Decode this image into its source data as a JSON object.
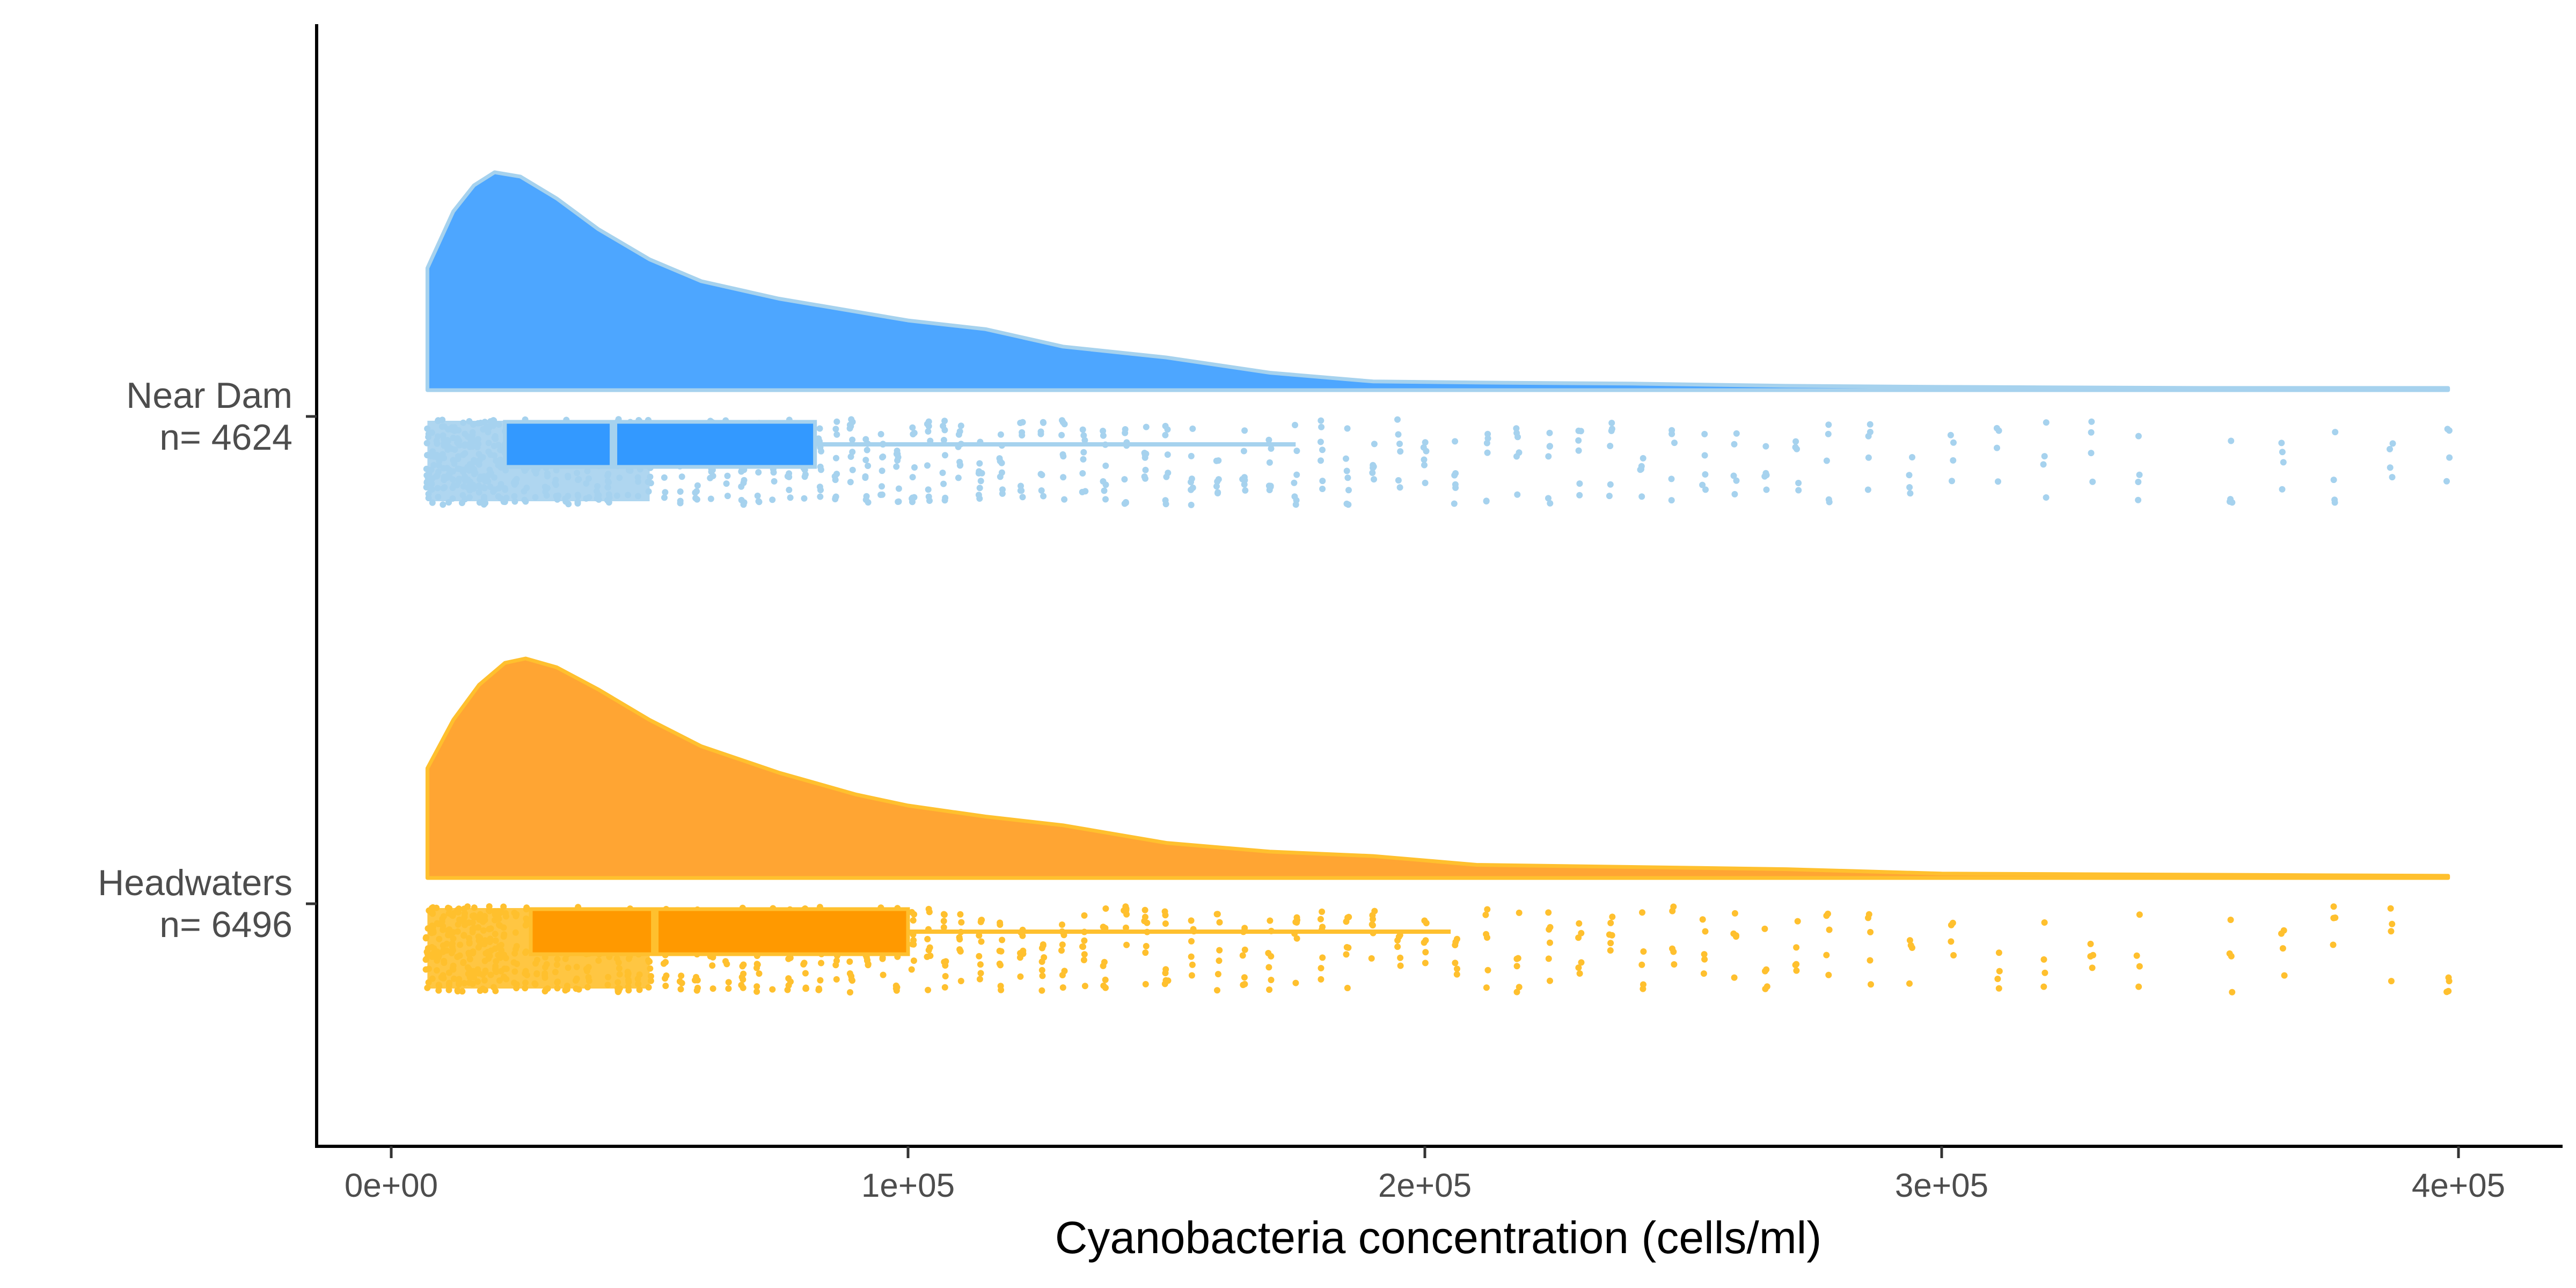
{
  "chart_data": {
    "type": "raincloud",
    "title": "",
    "xlabel": "Cyanobacteria concentration (cells/ml)",
    "ylabel": "",
    "xlim": [
      -15000,
      420000
    ],
    "x_ticks": [
      0,
      100000,
      200000,
      300000,
      400000
    ],
    "x_tick_labels": [
      "0e+00",
      "1e+05",
      "2e+05",
      "3e+05",
      "4e+05"
    ],
    "grid": false,
    "legend": "none",
    "groups": [
      {
        "name": "Near Dam",
        "label_line1": "Near Dam",
        "label_line2": "n= 4624",
        "n": 4624,
        "fill_color": "#4DA6FF",
        "outline_color": "#A6D2EE",
        "point_color": "#A6D2EE",
        "box_color": "#3399FF",
        "range": [
          7000,
          398000
        ],
        "box": {
          "q1": 22000,
          "median": 43000,
          "q3": 82000,
          "whisker_high": 175000
        },
        "density": [
          [
            7000,
            0.56
          ],
          [
            12000,
            0.82
          ],
          [
            16000,
            0.94
          ],
          [
            20000,
            1.0
          ],
          [
            25000,
            0.98
          ],
          [
            32000,
            0.88
          ],
          [
            40000,
            0.74
          ],
          [
            50000,
            0.6
          ],
          [
            60000,
            0.5
          ],
          [
            75000,
            0.42
          ],
          [
            90000,
            0.36
          ],
          [
            100000,
            0.32
          ],
          [
            115000,
            0.28
          ],
          [
            130000,
            0.2
          ],
          [
            150000,
            0.15
          ],
          [
            170000,
            0.08
          ],
          [
            190000,
            0.04
          ],
          [
            210000,
            0.035
          ],
          [
            240000,
            0.03
          ],
          [
            270000,
            0.02
          ],
          [
            300000,
            0.015
          ],
          [
            350000,
            0.01
          ],
          [
            398000,
            0.01
          ]
        ],
        "sample_values": [
          7000,
          8000,
          9000,
          10000,
          11000,
          12000,
          13000,
          14000,
          15000,
          16000,
          17000,
          18000,
          19000,
          20000,
          21000,
          22000,
          24000,
          26000,
          28000,
          30000,
          32000,
          34000,
          36000,
          38000,
          40000,
          42000,
          44000,
          46000,
          48000,
          50000,
          53000,
          56000,
          59000,
          62000,
          65000,
          68000,
          71000,
          74000,
          77000,
          80000,
          83000,
          86000,
          89000,
          92000,
          95000,
          98000,
          101000,
          104000,
          107000,
          110000,
          114000,
          118000,
          122000,
          126000,
          130000,
          134000,
          138000,
          142000,
          146000,
          150000,
          155000,
          160000,
          165000,
          170000,
          175000,
          180000,
          185000,
          190000,
          195000,
          200000,
          206000,
          212000,
          218000,
          224000,
          230000,
          236000,
          242000,
          248000,
          254000,
          260000,
          266000,
          272000,
          278000,
          286000,
          294000,
          302000,
          311000,
          320000,
          329000,
          338000,
          356000,
          366000,
          376000,
          387000,
          398000
        ]
      },
      {
        "name": "Headwaters",
        "label_line1": "Headwaters",
        "label_line2": "n= 6496",
        "n": 6496,
        "fill_color": "#FFA533",
        "outline_color": "#FFC02E",
        "point_color": "#FFC02E",
        "box_color": "#FF9900",
        "range": [
          7000,
          398000
        ],
        "box": {
          "q1": 27000,
          "median": 51000,
          "q3": 100000,
          "whisker_high": 205000
        },
        "density": [
          [
            7000,
            0.5
          ],
          [
            12000,
            0.72
          ],
          [
            17000,
            0.88
          ],
          [
            22000,
            0.98
          ],
          [
            26000,
            1.0
          ],
          [
            32000,
            0.96
          ],
          [
            40000,
            0.86
          ],
          [
            50000,
            0.72
          ],
          [
            60000,
            0.6
          ],
          [
            75000,
            0.48
          ],
          [
            90000,
            0.38
          ],
          [
            100000,
            0.33
          ],
          [
            115000,
            0.28
          ],
          [
            130000,
            0.24
          ],
          [
            150000,
            0.16
          ],
          [
            170000,
            0.12
          ],
          [
            190000,
            0.1
          ],
          [
            210000,
            0.06
          ],
          [
            240000,
            0.05
          ],
          [
            270000,
            0.04
          ],
          [
            300000,
            0.02
          ],
          [
            350000,
            0.015
          ],
          [
            398000,
            0.01
          ]
        ],
        "sample_values": [
          7000,
          8000,
          9000,
          10000,
          11000,
          12000,
          13000,
          14000,
          15000,
          16000,
          17000,
          18000,
          19000,
          20000,
          21000,
          22000,
          24000,
          26000,
          28000,
          30000,
          32000,
          34000,
          36000,
          38000,
          40000,
          42000,
          44000,
          46000,
          48000,
          50000,
          53000,
          56000,
          59000,
          62000,
          65000,
          68000,
          71000,
          74000,
          77000,
          80000,
          83000,
          86000,
          89000,
          92000,
          95000,
          98000,
          101000,
          104000,
          107000,
          110000,
          114000,
          118000,
          122000,
          126000,
          130000,
          134000,
          138000,
          142000,
          146000,
          150000,
          155000,
          160000,
          165000,
          170000,
          175000,
          180000,
          185000,
          190000,
          195000,
          200000,
          206000,
          212000,
          218000,
          224000,
          230000,
          236000,
          242000,
          248000,
          254000,
          260000,
          266000,
          272000,
          278000,
          286000,
          294000,
          302000,
          311000,
          320000,
          329000,
          338000,
          356000,
          366000,
          376000,
          387000,
          398000
        ]
      }
    ]
  }
}
